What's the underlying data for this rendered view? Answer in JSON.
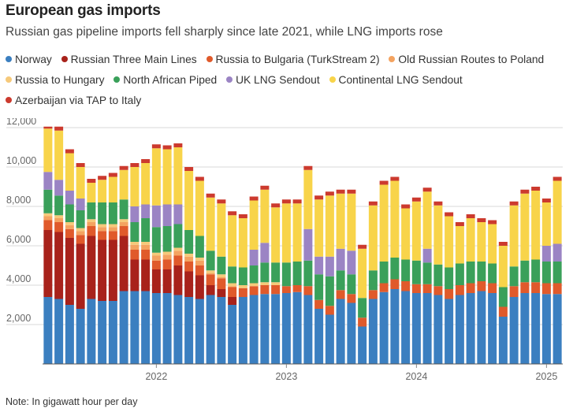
{
  "title": "European gas imports",
  "subtitle": "Russian gas pipeline imports fell sharply since late 2021, while LNG imports rose",
  "note": "Note: In gigawatt hour per day",
  "chart_data": {
    "type": "bar",
    "stacked": true,
    "title": "European gas imports",
    "subtitle": "Russian gas pipeline imports fell sharply since late 2021, while LNG imports rose",
    "ylim": [
      0,
      12000
    ],
    "yticks": [
      2000,
      4000,
      6000,
      8000,
      10000,
      12000
    ],
    "ytick_labels": [
      "2,000",
      "4,000",
      "6,000",
      "8,000",
      "10,000",
      "12,000"
    ],
    "grid": true,
    "legend_position": "top",
    "x_start": "2021-03",
    "x_end": "2025-02",
    "xtick_labels": [
      "2022",
      "2023",
      "2024",
      "2025"
    ],
    "categories": [
      "2021-03",
      "2021-04",
      "2021-05",
      "2021-06",
      "2021-07",
      "2021-08",
      "2021-09",
      "2021-10",
      "2021-11",
      "2021-12",
      "2022-01",
      "2022-02",
      "2022-03",
      "2022-04",
      "2022-05",
      "2022-06",
      "2022-07",
      "2022-08",
      "2022-09",
      "2022-10",
      "2022-11",
      "2022-12",
      "2023-01",
      "2023-02",
      "2023-03",
      "2023-04",
      "2023-05",
      "2023-06",
      "2023-07",
      "2023-08",
      "2023-09",
      "2023-10",
      "2023-11",
      "2023-12",
      "2024-01",
      "2024-02",
      "2024-03",
      "2024-04",
      "2024-05",
      "2024-06",
      "2024-07",
      "2024-08",
      "2024-09",
      "2024-10",
      "2024-11",
      "2024-12",
      "2025-01",
      "2025-02"
    ],
    "series": [
      {
        "name": "Norway",
        "color": "#3b7fc0",
        "values": [
          3400,
          3300,
          3000,
          2800,
          3300,
          3200,
          3200,
          3700,
          3700,
          3700,
          3600,
          3600,
          3500,
          3400,
          3300,
          3500,
          3400,
          3000,
          3400,
          3500,
          3550,
          3550,
          3600,
          3650,
          3500,
          2800,
          2500,
          3300,
          3100,
          1900,
          3300,
          3650,
          3800,
          3700,
          3600,
          3600,
          3500,
          3300,
          3500,
          3600,
          3700,
          3600,
          2400,
          3400,
          3600,
          3600,
          3550,
          3550
        ]
      },
      {
        "name": "Russian Three Main Lines",
        "color": "#a8221b",
        "values": [
          3400,
          3400,
          3400,
          3300,
          3200,
          3100,
          3100,
          2800,
          1600,
          1600,
          1200,
          1200,
          1500,
          1300,
          1200,
          500,
          400,
          400,
          0,
          0,
          0,
          0,
          0,
          0,
          0,
          0,
          0,
          0,
          0,
          0,
          0,
          0,
          0,
          0,
          0,
          0,
          0,
          0,
          0,
          0,
          0,
          0,
          0,
          0,
          0,
          0,
          0,
          0
        ]
      },
      {
        "name": "Russia to Bulgaria (TurkStream 2)",
        "color": "#e05a2b",
        "values": [
          500,
          500,
          450,
          450,
          500,
          450,
          450,
          500,
          500,
          500,
          450,
          500,
          500,
          500,
          500,
          550,
          550,
          500,
          450,
          450,
          450,
          450,
          350,
          350,
          450,
          450,
          450,
          450,
          450,
          450,
          450,
          450,
          500,
          500,
          450,
          450,
          450,
          500,
          500,
          500,
          500,
          500,
          500,
          550,
          550,
          550,
          550,
          550
        ]
      },
      {
        "name": "Old Russian Routes to Poland",
        "color": "#f4a360",
        "values": [
          200,
          200,
          200,
          200,
          200,
          200,
          200,
          200,
          250,
          250,
          250,
          250,
          250,
          250,
          250,
          50,
          50,
          50,
          0,
          0,
          0,
          0,
          0,
          0,
          0,
          0,
          0,
          0,
          0,
          0,
          0,
          0,
          0,
          0,
          0,
          0,
          0,
          0,
          0,
          0,
          0,
          0,
          0,
          0,
          0,
          0,
          0,
          0
        ]
      },
      {
        "name": "Russia to Hungary",
        "color": "#f6c97a",
        "values": [
          150,
          150,
          150,
          150,
          150,
          150,
          150,
          150,
          150,
          150,
          150,
          150,
          150,
          150,
          150,
          150,
          150,
          150,
          150,
          150,
          150,
          150,
          0,
          0,
          0,
          0,
          0,
          0,
          0,
          0,
          0,
          0,
          0,
          0,
          0,
          0,
          0,
          0,
          0,
          0,
          0,
          0,
          0,
          0,
          0,
          0,
          0,
          0
        ]
      },
      {
        "name": "North African Piped",
        "color": "#3aa05a",
        "values": [
          1200,
          1000,
          900,
          900,
          850,
          1100,
          1100,
          1000,
          1000,
          1200,
          1300,
          1300,
          1200,
          1200,
          1100,
          1000,
          900,
          850,
          900,
          900,
          1000,
          1000,
          1200,
          1200,
          1300,
          1300,
          1500,
          1000,
          1000,
          1000,
          1000,
          1100,
          1100,
          1100,
          1200,
          1100,
          1100,
          1100,
          1100,
          1100,
          1000,
          1000,
          1000,
          1000,
          1100,
          1150,
          1100,
          1100
        ]
      },
      {
        "name": "UK LNG Sendout",
        "color": "#9b84c4",
        "values": [
          900,
          800,
          700,
          600,
          0,
          0,
          0,
          0,
          800,
          700,
          1100,
          1100,
          1000,
          0,
          0,
          0,
          0,
          0,
          0,
          800,
          1000,
          0,
          0,
          0,
          1600,
          900,
          1000,
          1100,
          1200,
          0,
          0,
          0,
          0,
          0,
          0,
          700,
          0,
          0,
          0,
          0,
          0,
          0,
          0,
          0,
          0,
          0,
          800,
          900
        ]
      },
      {
        "name": "Continental LNG Sendout",
        "color": "#f8d44a",
        "values": [
          2200,
          2500,
          1900,
          1600,
          1000,
          1150,
          1300,
          1500,
          2000,
          2100,
          2900,
          2800,
          2900,
          3000,
          2800,
          2700,
          2700,
          2600,
          2500,
          2500,
          2700,
          2800,
          3000,
          2950,
          3000,
          2900,
          3100,
          2800,
          2900,
          2500,
          3300,
          3900,
          3900,
          2600,
          3000,
          2900,
          3000,
          2600,
          1900,
          2200,
          2000,
          2000,
          2100,
          3100,
          3400,
          3500,
          2200,
          3200
        ]
      },
      {
        "name": "Azerbaijan via TAP to Italy",
        "color": "#cc3a2e",
        "values": [
          100,
          200,
          200,
          200,
          200,
          200,
          200,
          200,
          200,
          200,
          200,
          200,
          200,
          200,
          200,
          200,
          200,
          200,
          200,
          200,
          200,
          200,
          200,
          200,
          200,
          200,
          200,
          200,
          200,
          200,
          200,
          200,
          200,
          200,
          200,
          200,
          200,
          200,
          200,
          200,
          200,
          200,
          200,
          200,
          200,
          200,
          200,
          200
        ]
      }
    ]
  }
}
